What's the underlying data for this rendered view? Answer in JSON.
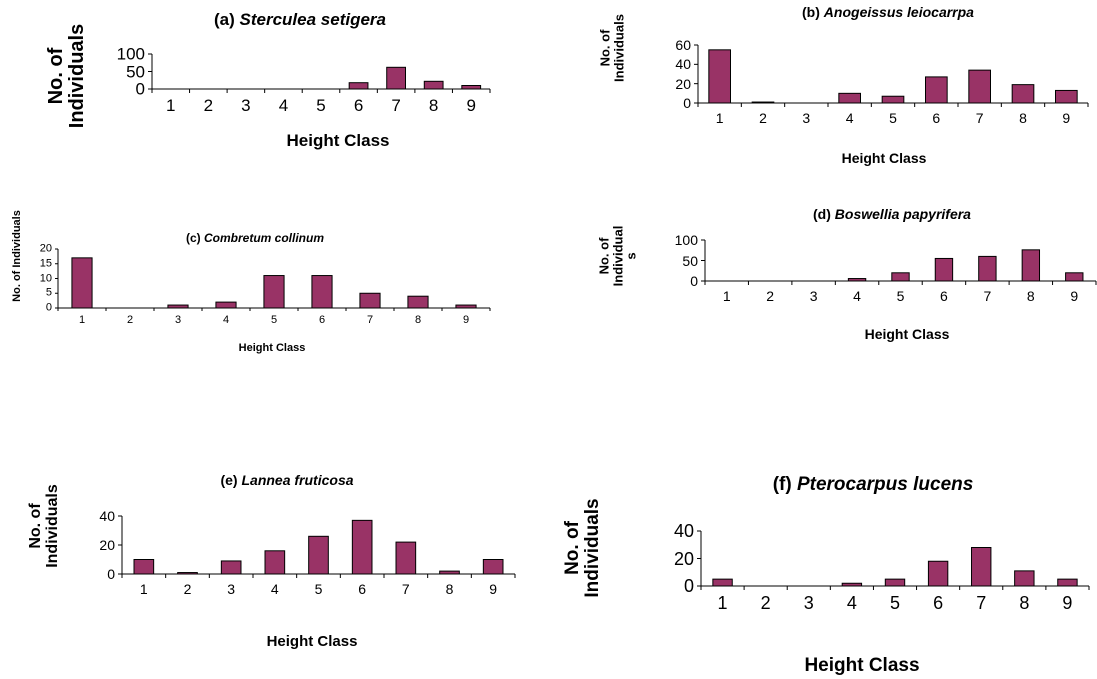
{
  "chart_data": [
    {
      "type": "bar",
      "title_prefix": "(a)",
      "title_species": "Sterculea setigera",
      "xlabel": "Height Class",
      "ylabel_lines": [
        "No. of",
        "Individuals"
      ],
      "categories": [
        "1",
        "2",
        "3",
        "4",
        "5",
        "6",
        "7",
        "8",
        "9"
      ],
      "values": [
        0,
        0,
        0,
        0,
        0,
        18,
        62,
        22,
        10
      ],
      "yticks": [
        "0",
        "50",
        "100"
      ],
      "ylim": [
        0,
        100
      ],
      "bar_color": "#993366"
    },
    {
      "type": "bar",
      "title_prefix": "(b)",
      "title_species": "Anogeissus leiocarrpa",
      "xlabel": "Height Class",
      "ylabel_lines": [
        "No. of",
        "Individuals"
      ],
      "categories": [
        "1",
        "2",
        "3",
        "4",
        "5",
        "6",
        "7",
        "8",
        "9"
      ],
      "values": [
        55,
        1,
        0,
        10,
        7,
        27,
        34,
        19,
        13
      ],
      "yticks": [
        "0",
        "20",
        "40",
        "60"
      ],
      "ylim": [
        0,
        60
      ],
      "bar_color": "#993366"
    },
    {
      "type": "bar",
      "title_prefix": "(c)",
      "title_species": "Combretum collinum",
      "xlabel": "Height Class",
      "ylabel_lines": [
        "No. of Individuals"
      ],
      "categories": [
        "1",
        "2",
        "3",
        "4",
        "5",
        "6",
        "7",
        "8",
        "9"
      ],
      "values": [
        17,
        0,
        1,
        2,
        11,
        11,
        5,
        4,
        1
      ],
      "yticks": [
        "0",
        "5",
        "10",
        "15",
        "20"
      ],
      "ylim": [
        0,
        20
      ],
      "bar_color": "#993366"
    },
    {
      "type": "bar",
      "title_prefix": "(d)",
      "title_species": "Boswellia papyrifera",
      "xlabel": "Height Class",
      "ylabel_lines": [
        "No. of",
        "Individual",
        "s"
      ],
      "categories": [
        "1",
        "2",
        "3",
        "4",
        "5",
        "6",
        "7",
        "8",
        "9"
      ],
      "values": [
        0,
        0,
        0,
        6,
        20,
        55,
        60,
        76,
        20
      ],
      "yticks": [
        "0",
        "50",
        "100"
      ],
      "ylim": [
        0,
        100
      ],
      "bar_color": "#993366"
    },
    {
      "type": "bar",
      "title_prefix": "(e)",
      "title_species": "Lannea fruticosa",
      "xlabel": "Height Class",
      "ylabel_lines": [
        "No. of",
        "Individuals"
      ],
      "categories": [
        "1",
        "2",
        "3",
        "4",
        "5",
        "6",
        "7",
        "8",
        "9"
      ],
      "values": [
        10,
        1,
        9,
        16,
        26,
        37,
        22,
        2,
        10
      ],
      "yticks": [
        "0",
        "20",
        "40"
      ],
      "ylim": [
        0,
        40
      ],
      "bar_color": "#993366"
    },
    {
      "type": "bar",
      "title_prefix": "(f)",
      "title_species": "Pterocarpus lucens",
      "xlabel": "Height Class",
      "ylabel_lines": [
        "No. of",
        "Individuals"
      ],
      "categories": [
        "1",
        "2",
        "3",
        "4",
        "5",
        "6",
        "7",
        "8",
        "9"
      ],
      "values": [
        5,
        0,
        0,
        2,
        5,
        18,
        28,
        11,
        5
      ],
      "yticks": [
        "0",
        "20",
        "40"
      ],
      "ylim": [
        0,
        40
      ],
      "bar_color": "#993366"
    }
  ]
}
